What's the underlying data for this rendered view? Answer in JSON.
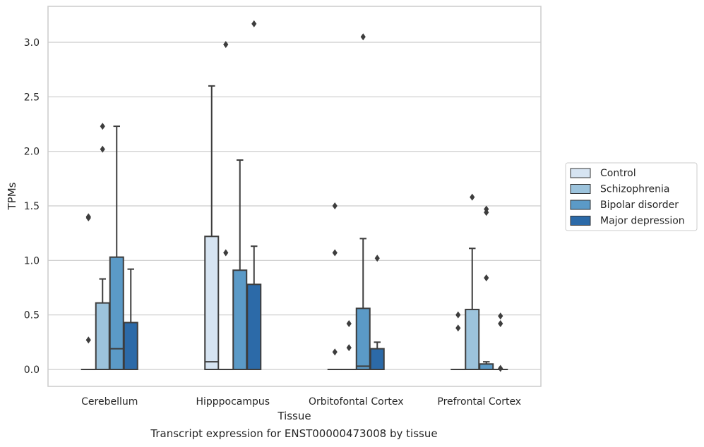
{
  "caption": "Transcript expression for ENST00000473008 by tissue",
  "chart_data": {
    "type": "box",
    "title": "",
    "xlabel": "Tissue",
    "ylabel": "TPMs",
    "ylim": [
      -0.15,
      3.35
    ],
    "yticks": [
      0.0,
      0.5,
      1.0,
      1.5,
      2.0,
      2.5,
      3.0
    ],
    "ytick_labels": [
      "0.0",
      "0.5",
      "1.0",
      "1.5",
      "2.0",
      "2.5",
      "3.0"
    ],
    "grid": "horizontal",
    "legend_position": "right",
    "categories": [
      "Cerebellum",
      "Hipppocampus",
      "Orbitofontal Cortex",
      "Prefrontal Cortex"
    ],
    "series": [
      {
        "name": "Control",
        "color": "#d6e4f2",
        "boxes": [
          {
            "q1": 0.0,
            "median": 0.0,
            "q3": 0.0,
            "whisker_low": 0.0,
            "whisker_high": 0.0,
            "outliers": [
              0.27,
              1.39,
              1.4
            ]
          },
          {
            "q1": 0.0,
            "median": 0.07,
            "q3": 1.22,
            "whisker_low": 0.0,
            "whisker_high": 2.6,
            "outliers": []
          },
          {
            "q1": 0.0,
            "median": 0.0,
            "q3": 0.0,
            "whisker_low": 0.0,
            "whisker_high": 0.0,
            "outliers": [
              0.16,
              1.07,
              1.5
            ]
          },
          {
            "q1": 0.0,
            "median": 0.0,
            "q3": 0.0,
            "whisker_low": 0.0,
            "whisker_high": 0.0,
            "outliers": [
              0.38,
              0.5
            ]
          }
        ]
      },
      {
        "name": "Schizophrenia",
        "color": "#9cc3dc",
        "boxes": [
          {
            "q1": 0.0,
            "median": 0.0,
            "q3": 0.61,
            "whisker_low": 0.0,
            "whisker_high": 0.83,
            "outliers": [
              2.02,
              2.23
            ]
          },
          {
            "q1": 0.0,
            "median": 0.0,
            "q3": 0.0,
            "whisker_low": 0.0,
            "whisker_high": 0.0,
            "outliers": [
              1.07,
              2.98
            ]
          },
          {
            "q1": 0.0,
            "median": 0.0,
            "q3": 0.0,
            "whisker_low": 0.0,
            "whisker_high": 0.0,
            "outliers": [
              0.2,
              0.42
            ]
          },
          {
            "q1": 0.0,
            "median": 0.0,
            "q3": 0.55,
            "whisker_low": 0.0,
            "whisker_high": 1.11,
            "outliers": [
              1.58
            ]
          }
        ]
      },
      {
        "name": "Bipolar disorder",
        "color": "#5b9ac7",
        "boxes": [
          {
            "q1": 0.0,
            "median": 0.19,
            "q3": 1.03,
            "whisker_low": 0.0,
            "whisker_high": 2.23,
            "outliers": []
          },
          {
            "q1": 0.0,
            "median": 0.0,
            "q3": 0.91,
            "whisker_low": 0.0,
            "whisker_high": 1.92,
            "outliers": []
          },
          {
            "q1": 0.0,
            "median": 0.03,
            "q3": 0.56,
            "whisker_low": 0.0,
            "whisker_high": 1.2,
            "outliers": [
              3.05
            ]
          },
          {
            "q1": 0.0,
            "median": 0.0,
            "q3": 0.05,
            "whisker_low": 0.0,
            "whisker_high": 0.07,
            "outliers": [
              0.84,
              1.44,
              1.47
            ]
          }
        ]
      },
      {
        "name": "Major depression",
        "color": "#2c6aa8",
        "boxes": [
          {
            "q1": 0.0,
            "median": 0.0,
            "q3": 0.43,
            "whisker_low": 0.0,
            "whisker_high": 0.92,
            "outliers": []
          },
          {
            "q1": 0.0,
            "median": 0.0,
            "q3": 0.78,
            "whisker_low": 0.0,
            "whisker_high": 1.13,
            "outliers": [
              3.17
            ]
          },
          {
            "q1": 0.0,
            "median": 0.0,
            "q3": 0.19,
            "whisker_low": 0.0,
            "whisker_high": 0.25,
            "outliers": [
              1.02
            ]
          },
          {
            "q1": 0.0,
            "median": 0.0,
            "q3": 0.0,
            "whisker_low": 0.0,
            "whisker_high": 0.0,
            "outliers": [
              0.01,
              0.42,
              0.49
            ]
          }
        ]
      }
    ]
  }
}
